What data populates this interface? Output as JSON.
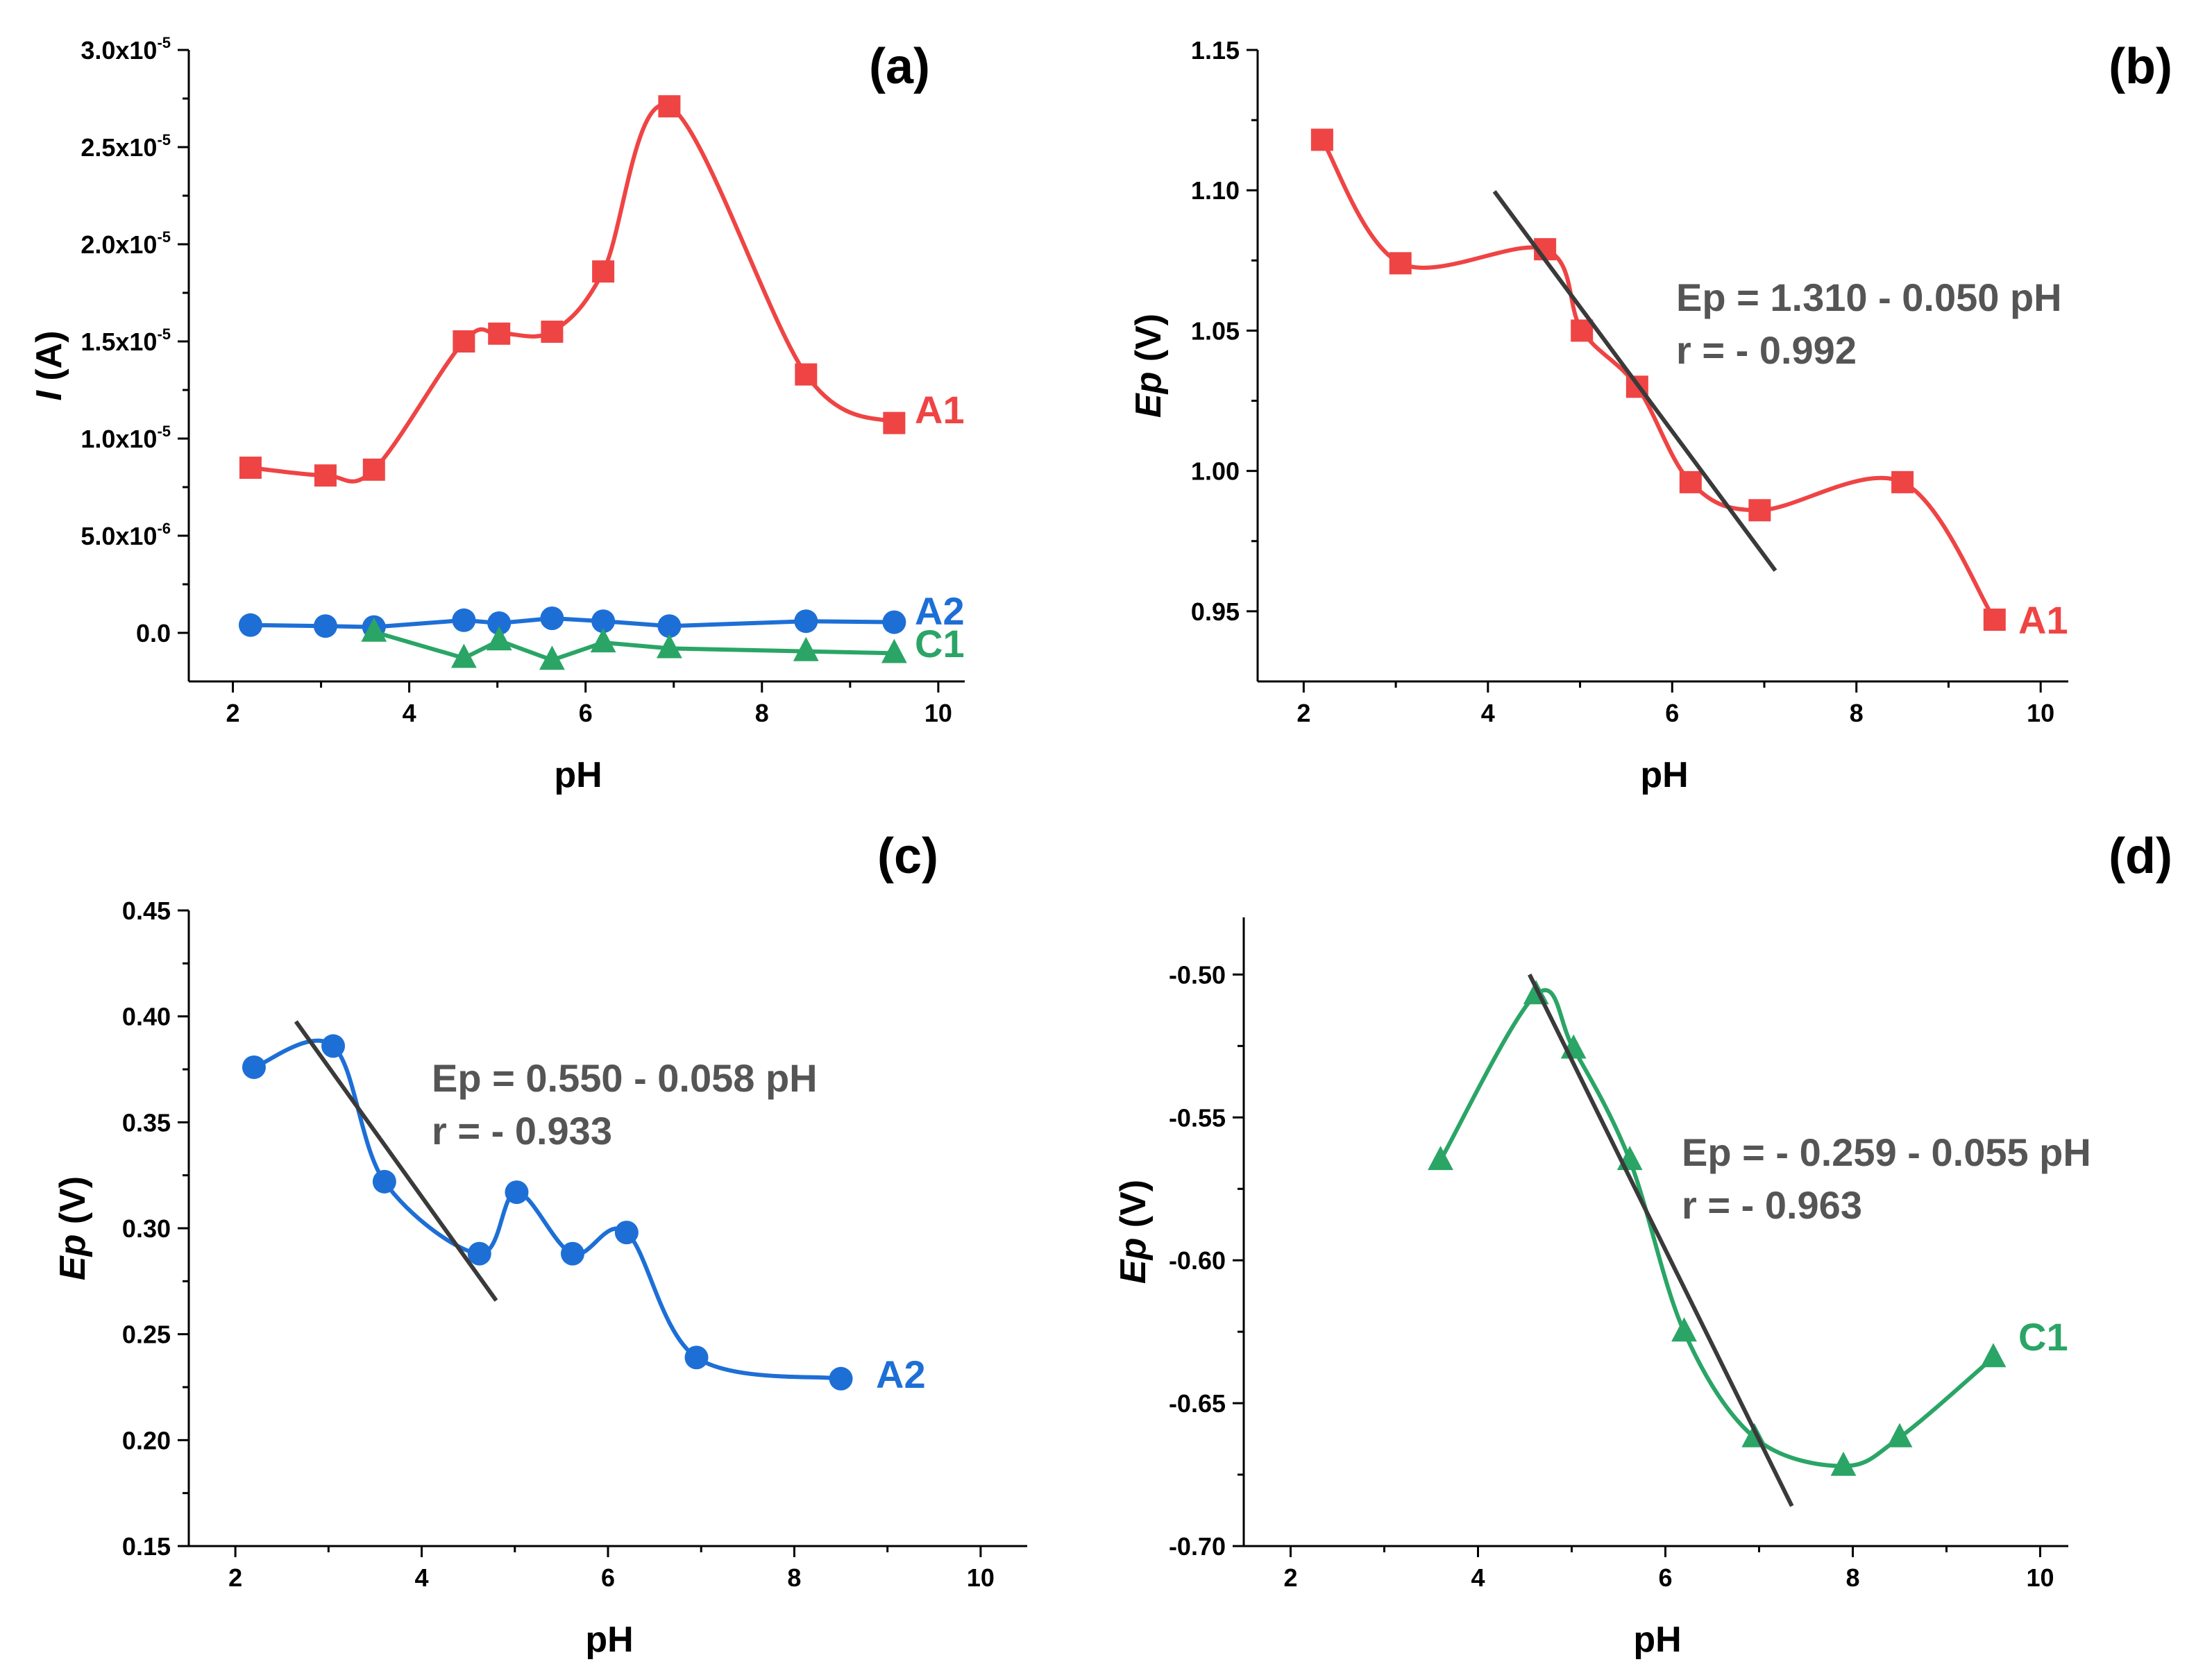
{
  "colors": {
    "A1": "#ef4444",
    "A2": "#1d6fd6",
    "C1": "#2aa566",
    "fit_line": "#3a3a3a",
    "axis": "#000000",
    "equation": "#555555"
  },
  "chart_data": [
    {
      "panel": "(a)",
      "type": "line",
      "xlabel": "pH",
      "ylabel_italic": "I",
      "ylabel_rest": " (A)",
      "xlim": [
        1.5,
        10.3
      ],
      "ylim": [
        -2.5e-06,
        3e-05
      ],
      "xticks": [
        2,
        4,
        6,
        8,
        10
      ],
      "yticks": [
        {
          "value": 3e-05,
          "mantissa": "3.0x10",
          "exp": "-5"
        },
        {
          "value": 2.5e-05,
          "mantissa": "2.5x10",
          "exp": "-5"
        },
        {
          "value": 2e-05,
          "mantissa": "2.0x10",
          "exp": "-5"
        },
        {
          "value": 1.5e-05,
          "mantissa": "1.5x10",
          "exp": "-5"
        },
        {
          "value": 1e-05,
          "mantissa": "1.0x10",
          "exp": "-5"
        },
        {
          "value": 5e-06,
          "mantissa": "5.0x10",
          "exp": "-6"
        },
        {
          "value": 0,
          "mantissa": "0.0",
          "exp": ""
        }
      ],
      "series": [
        {
          "name": "A1",
          "marker": "square",
          "x": [
            2.2,
            3.05,
            3.6,
            4.62,
            5.02,
            5.62,
            6.2,
            6.95,
            8.5,
            9.5
          ],
          "y": [
            8.5e-06,
            8.1e-06,
            8.4e-06,
            1.5e-05,
            1.54e-05,
            1.55e-05,
            1.86e-05,
            2.71e-05,
            1.33e-05,
            1.08e-05
          ]
        },
        {
          "name": "A2",
          "marker": "circle",
          "x": [
            2.2,
            3.05,
            3.6,
            4.62,
            5.02,
            5.62,
            6.2,
            6.95,
            8.5,
            9.5
          ],
          "y": [
            4e-07,
            3.5e-07,
            3e-07,
            6.5e-07,
            5e-07,
            7.5e-07,
            6e-07,
            3.5e-07,
            6e-07,
            5.5e-07
          ]
        },
        {
          "name": "C1",
          "marker": "triangle",
          "x": [
            3.6,
            4.62,
            5.02,
            5.62,
            6.2,
            6.95,
            8.5,
            9.5
          ],
          "y": [
            5e-08,
            -1.3e-06,
            -4e-07,
            -1.4e-06,
            -5e-07,
            -8e-07,
            -9.5e-07,
            -1.05e-06
          ]
        }
      ]
    },
    {
      "panel": "(b)",
      "type": "line",
      "xlabel": "pH",
      "ylabel_italic": "Ep",
      "ylabel_rest": " (V)",
      "xlim": [
        1.5,
        10.3
      ],
      "ylim": [
        0.925,
        1.15
      ],
      "xticks": [
        2,
        4,
        6,
        8,
        10
      ],
      "yticks": [
        "1.15",
        "1.10",
        "1.05",
        "1.00",
        "0.95"
      ],
      "series": [
        {
          "name": "A1",
          "marker": "square",
          "x": [
            2.2,
            3.05,
            4.62,
            5.02,
            5.62,
            6.2,
            6.95,
            8.5,
            9.5
          ],
          "y": [
            1.118,
            1.074,
            1.079,
            1.05,
            1.03,
            0.996,
            0.986,
            0.996,
            0.947
          ]
        }
      ],
      "fit": {
        "x": [
          4.07,
          7.12
        ],
        "y": [
          1.0996,
          0.9645
        ]
      },
      "equation": "Ep = 1.310 - 0.050 pH",
      "r": "r = - 0.992"
    },
    {
      "panel": "(c)",
      "type": "line",
      "xlabel": "pH",
      "ylabel_italic": "Ep",
      "ylabel_rest": " (V)",
      "xlim": [
        1.5,
        10.5
      ],
      "ylim": [
        0.15,
        0.45
      ],
      "xticks": [
        2,
        4,
        6,
        8,
        10
      ],
      "yticks": [
        "0.45",
        "0.40",
        "0.35",
        "0.30",
        "0.25",
        "0.20",
        "0.15"
      ],
      "series": [
        {
          "name": "A2",
          "marker": "circle",
          "x": [
            2.2,
            3.05,
            3.6,
            4.62,
            5.02,
            5.62,
            6.2,
            6.95,
            8.5
          ],
          "y": [
            0.376,
            0.386,
            0.322,
            0.288,
            0.317,
            0.288,
            0.298,
            0.239,
            0.229
          ]
        }
      ],
      "fit": {
        "x": [
          2.65,
          4.8
        ],
        "y": [
          0.3976,
          0.2659
        ]
      },
      "equation": "Ep = 0.550 - 0.058 pH",
      "r": "r = - 0.933"
    },
    {
      "panel": "(d)",
      "type": "line",
      "xlabel": "pH",
      "ylabel_italic": "Ep",
      "ylabel_rest": " (V)",
      "xlim": [
        1.5,
        10.3
      ],
      "ylim": [
        -0.7,
        -0.48
      ],
      "xticks": [
        2,
        4,
        6,
        8,
        10
      ],
      "yticks": [
        "-0.50",
        "-0.55",
        "-0.60",
        "-0.65",
        "-0.70"
      ],
      "series": [
        {
          "name": "C1",
          "marker": "triangle",
          "x": [
            3.6,
            4.62,
            5.02,
            5.62,
            6.2,
            6.95,
            7.9,
            8.5,
            9.5
          ],
          "y": [
            -0.565,
            -0.507,
            -0.526,
            -0.565,
            -0.625,
            -0.662,
            -0.672,
            -0.662,
            -0.634
          ]
        }
      ],
      "fit": {
        "x": [
          4.55,
          7.35
        ],
        "y": [
          -0.5,
          -0.686
        ]
      },
      "equation": "Ep = - 0.259 - 0.055 pH",
      "r": "r = - 0.963"
    }
  ]
}
